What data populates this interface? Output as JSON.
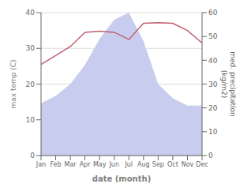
{
  "chart_data": {
    "type": "line",
    "categories": [
      "Jan",
      "Feb",
      "Mar",
      "Apr",
      "May",
      "Jun",
      "Jul",
      "Aug",
      "Sep",
      "Oct",
      "Nov",
      "Dec"
    ],
    "series": [
      {
        "type": "area",
        "axis": "y2",
        "color": "#c8ccee",
        "values": [
          22,
          25,
          30,
          38,
          49,
          57,
          60,
          48,
          30,
          24,
          21,
          21
        ]
      },
      {
        "type": "line",
        "color": "#c06070",
        "values": [
          25.5,
          28.0,
          30.5,
          34.5,
          34.8,
          34.5,
          32.5,
          37.0,
          37.2,
          37.0,
          35.0,
          31.5
        ]
      }
    ],
    "xlabel": "date (month)",
    "ylabel": "max temp (C)",
    "y2label": "med. precipitation\n(kg/m2)",
    "ylim": [
      0,
      40
    ],
    "yticks": [
      0,
      10,
      20,
      30,
      40
    ],
    "y2lim": [
      0,
      60
    ],
    "y2ticks": [
      0,
      10,
      20,
      30,
      40,
      50,
      60
    ],
    "grid": true
  }
}
